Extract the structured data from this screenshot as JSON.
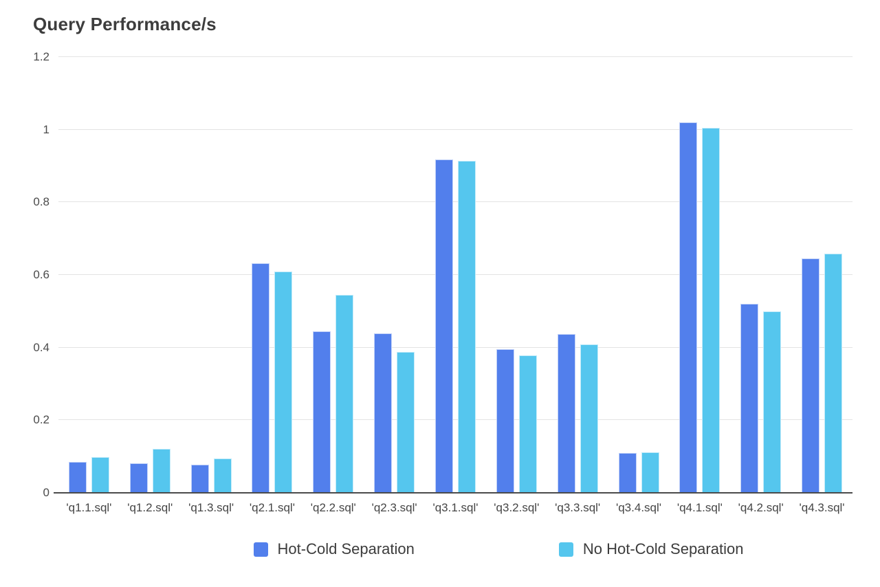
{
  "chart_data": {
    "type": "bar",
    "title": "Query Performance/s",
    "xlabel": "",
    "ylabel": "",
    "ylim": [
      0,
      1.2
    ],
    "yticks": [
      0,
      0.2,
      0.4,
      0.6,
      0.8,
      1,
      1.2
    ],
    "ytick_labels": [
      "0",
      "0.2",
      "0.4",
      "0.6",
      "0.8",
      "1",
      "1.2"
    ],
    "grid": true,
    "legend_position": "bottom",
    "categories": [
      "'q1.1.sql'",
      "'q1.2.sql'",
      "'q1.3.sql'",
      "'q2.1.sql'",
      "'q2.2.sql'",
      "'q2.3.sql'",
      "'q3.1.sql'",
      "'q3.2.sql'",
      "'q3.3.sql'",
      "'q3.4.sql'",
      "'q4.1.sql'",
      "'q4.2.sql'",
      "'q4.3.sql'"
    ],
    "series": [
      {
        "name": "Hot-Cold Separation",
        "color": "#527fec",
        "values": [
          0.085,
          0.082,
          0.078,
          0.632,
          0.445,
          0.44,
          0.918,
          0.395,
          0.438,
          0.11,
          1.02,
          0.52,
          0.645
        ]
      },
      {
        "name": "No Hot-Cold Separation",
        "color": "#55c6ee",
        "values": [
          0.098,
          0.122,
          0.094,
          0.61,
          0.545,
          0.388,
          0.915,
          0.378,
          0.408,
          0.112,
          1.005,
          0.5,
          0.658
        ]
      }
    ],
    "colors": {
      "gridline": "#e3e3e3",
      "axis_line": "#4a4a4a",
      "title_text": "#3d3d3d",
      "tick_text": "#4b4b4b",
      "legend_text": "#3c3c3c"
    }
  }
}
